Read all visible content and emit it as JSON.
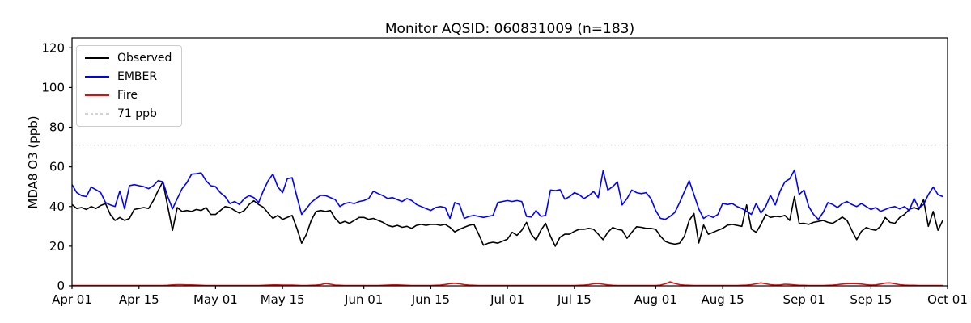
{
  "chart_data": {
    "type": "line",
    "title": "Monitor AQSID: 060831009 (n=183)",
    "xlabel": "",
    "ylabel": "MDA8 O3 (ppb)",
    "n_points": 183,
    "date_start": "Apr 01",
    "date_end": "Sep 30",
    "x_range_days": [
      0,
      183
    ],
    "ylim": [
      0,
      125
    ],
    "y_ticks": [
      0,
      20,
      40,
      60,
      80,
      100,
      120
    ],
    "x_ticks": [
      {
        "day": 0,
        "label": "Apr 01"
      },
      {
        "day": 14,
        "label": "Apr 15"
      },
      {
        "day": 30,
        "label": "May 01"
      },
      {
        "day": 44,
        "label": "May 15"
      },
      {
        "day": 61,
        "label": "Jun 01"
      },
      {
        "day": 75,
        "label": "Jun 15"
      },
      {
        "day": 91,
        "label": "Jul 01"
      },
      {
        "day": 105,
        "label": "Jul 15"
      },
      {
        "day": 122,
        "label": "Aug 01"
      },
      {
        "day": 136,
        "label": "Aug 15"
      },
      {
        "day": 153,
        "label": "Sep 01"
      },
      {
        "day": 167,
        "label": "Sep 15"
      },
      {
        "day": 183,
        "label": "Oct 01"
      }
    ],
    "threshold": {
      "value": 71,
      "label": "71 ppb",
      "color": "#d3d3d3",
      "style": "dotted"
    },
    "legend": [
      {
        "label": "Observed",
        "color": "#000000",
        "dash": "solid"
      },
      {
        "label": "EMBER",
        "color": "#0000ff",
        "dash": "solid"
      },
      {
        "label": "Fire",
        "color": "#ff0000",
        "dash": "solid"
      },
      {
        "label": "71 ppb",
        "color": "#d3d3d3",
        "dash": "dotted"
      }
    ],
    "series": [
      {
        "name": "Observed",
        "color": "#000000",
        "values": [
          41,
          39,
          39.5,
          38.5,
          40,
          39,
          40.5,
          41.5,
          36,
          33,
          34.5,
          33,
          34,
          38.5,
          39,
          39.5,
          39,
          43,
          48,
          52.5,
          40,
          28,
          39.5,
          37.5,
          38,
          37.5,
          38.5,
          38,
          39.5,
          36,
          36,
          38,
          40,
          39.5,
          38,
          36.7,
          38,
          41,
          42.9,
          41,
          39.6,
          36.7,
          34,
          35.5,
          33.5,
          34.5,
          35.5,
          29,
          21.5,
          26,
          33,
          37.5,
          38,
          37.5,
          38,
          34,
          31.5,
          32.5,
          31.5,
          33,
          34.5,
          34.5,
          33.5,
          34,
          33,
          32,
          30.5,
          29.8,
          30.5,
          29.5,
          30,
          29,
          30.5,
          31,
          30.5,
          31,
          31,
          30.5,
          31,
          29.5,
          27.2,
          28.5,
          29.5,
          30.5,
          31,
          26,
          20.5,
          21.5,
          22,
          21.5,
          22.5,
          23.5,
          27,
          25.5,
          28,
          32,
          26,
          23,
          28,
          31.5,
          25,
          20,
          24.5,
          26,
          26,
          27.5,
          28.5,
          28.5,
          29,
          28.5,
          26,
          23.3,
          27,
          29.4,
          28.5,
          28,
          24,
          27,
          29.8,
          29.5,
          29,
          29,
          28.5,
          25,
          22.4,
          21.5,
          21,
          21.5,
          25,
          33,
          36.5,
          21.6,
          30.6,
          26,
          27,
          28,
          29,
          30.6,
          31,
          30.5,
          30,
          40.8,
          28.6,
          27,
          31,
          36,
          34.5,
          35,
          34.8,
          35.5,
          33,
          45,
          31.4,
          31.5,
          31,
          32,
          32.5,
          33,
          32,
          31.5,
          33,
          34.7,
          33,
          28,
          23.3,
          27.5,
          29.4,
          28.5,
          28,
          30,
          34.5,
          32,
          31.5,
          34.5,
          36,
          38.5,
          39.5,
          38.5,
          43.5,
          30,
          37.5,
          28,
          33
        ]
      },
      {
        "name": "EMBER",
        "color": "#0000ff",
        "values": [
          51,
          47,
          45.5,
          45,
          49.8,
          48.5,
          47,
          42,
          40.8,
          40,
          47.8,
          38.8,
          50.5,
          51,
          50.5,
          50,
          49,
          50.5,
          53,
          52.5,
          45,
          38.8,
          44,
          49,
          52,
          56.3,
          56.5,
          57,
          53,
          50.5,
          50,
          47,
          45,
          41.5,
          42.5,
          41,
          44,
          45.5,
          44.5,
          42,
          48,
          53,
          56.4,
          50,
          47,
          54,
          54.5,
          45,
          36,
          39,
          42,
          44,
          45.7,
          45.5,
          44.5,
          43.5,
          40,
          41.5,
          42,
          41.5,
          42.5,
          43,
          44,
          47.7,
          46.5,
          45.5,
          44,
          44.5,
          43.5,
          42.5,
          44,
          43,
          41,
          40,
          39,
          38,
          39.5,
          40,
          39.5,
          34,
          42,
          41,
          34,
          35,
          35.5,
          35,
          34.5,
          35,
          35.5,
          42,
          42.5,
          43,
          42.5,
          43,
          42.5,
          35,
          34.7,
          38,
          35,
          35.5,
          48.3,
          48,
          48.5,
          43.7,
          45,
          47,
          46,
          44,
          45.5,
          47.6,
          44.5,
          58,
          48.3,
          50,
          52.4,
          40.8,
          44,
          48.3,
          47,
          46.5,
          47,
          44,
          38,
          34,
          33.5,
          35,
          37,
          42,
          47.5,
          53,
          46,
          38.8,
          34,
          35.5,
          34.5,
          36,
          41.6,
          41,
          41.5,
          40,
          39,
          37.6,
          36,
          41.6,
          36.7,
          40,
          45.7,
          40.8,
          47.8,
          52.4,
          53.9,
          58.4,
          46.1,
          48.3,
          40,
          36,
          33.5,
          37,
          42,
          41,
          39.5,
          41.5,
          42.5,
          41,
          40,
          41.5,
          40,
          38.5,
          39.5,
          37.6,
          38.5,
          39.5,
          40,
          38.8,
          40,
          38,
          44,
          39.2,
          41,
          46,
          49.8,
          46,
          45
        ]
      },
      {
        "name": "Fire",
        "color": "#ff0000",
        "values": [
          0.2,
          0.2,
          0.2,
          0.2,
          0.2,
          0.2,
          0.2,
          0.2,
          0.2,
          0.2,
          0.2,
          0.2,
          0.2,
          0.2,
          0.2,
          0.2,
          0.2,
          0.2,
          0.2,
          0.2,
          0.3,
          0.5,
          0.6,
          0.6,
          0.5,
          0.5,
          0.4,
          0.3,
          0.2,
          0.2,
          0.2,
          0.2,
          0.2,
          0.2,
          0.2,
          0.2,
          0.2,
          0.2,
          0.2,
          0.2,
          0.3,
          0.4,
          0.5,
          0.5,
          0.4,
          0.4,
          0.4,
          0.3,
          0.2,
          0.2,
          0.3,
          0.4,
          0.6,
          1.2,
          0.8,
          0.4,
          0.3,
          0.2,
          0.2,
          0.2,
          0.2,
          0.2,
          0.2,
          0.2,
          0.2,
          0.3,
          0.4,
          0.5,
          0.5,
          0.4,
          0.3,
          0.2,
          0.2,
          0.2,
          0.2,
          0.2,
          0.3,
          0.4,
          0.7,
          1.1,
          1.3,
          1.0,
          0.6,
          0.4,
          0.3,
          0.2,
          0.2,
          0.2,
          0.2,
          0.2,
          0.2,
          0.2,
          0.2,
          0.2,
          0.2,
          0.2,
          0.2,
          0.2,
          0.2,
          0.2,
          0.2,
          0.2,
          0.2,
          0.2,
          0.2,
          0.2,
          0.3,
          0.4,
          0.6,
          1.0,
          1.2,
          0.8,
          0.5,
          0.3,
          0.2,
          0.2,
          0.2,
          0.2,
          0.2,
          0.2,
          0.2,
          0.2,
          0.2,
          0.4,
          1.0,
          2.0,
          1.2,
          0.6,
          0.4,
          0.3,
          0.2,
          0.2,
          0.2,
          0.2,
          0.2,
          0.2,
          0.2,
          0.2,
          0.2,
          0.2,
          0.3,
          0.4,
          0.6,
          1.0,
          1.5,
          1.0,
          0.6,
          0.4,
          0.5,
          0.8,
          0.7,
          0.5,
          0.3,
          0.3,
          0.2,
          0.2,
          0.2,
          0.2,
          0.3,
          0.4,
          0.6,
          0.9,
          1.1,
          1.2,
          1.1,
          0.9,
          0.6,
          0.4,
          0.5,
          0.9,
          1.4,
          1.5,
          1.0,
          0.6,
          0.4,
          0.3,
          0.3,
          0.2,
          0.2,
          0.2,
          0.2,
          0.2,
          0.2
        ]
      }
    ],
    "layout_hints": {
      "legend_position": "upper left",
      "grid": false,
      "plot_bg": "#ffffff",
      "spine_color": "#000000"
    }
  }
}
